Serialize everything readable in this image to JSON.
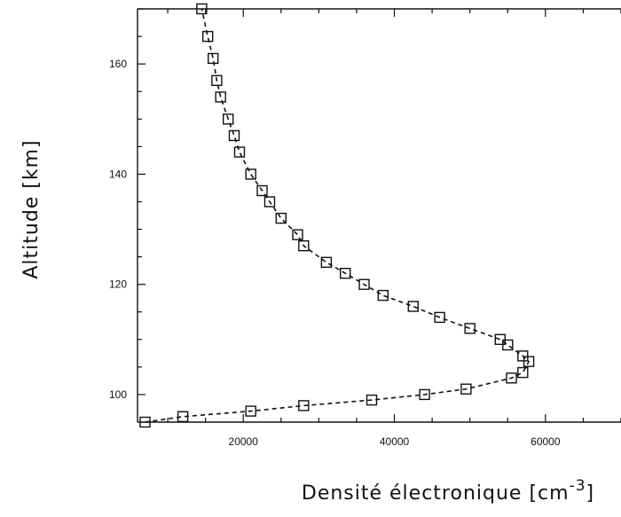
{
  "chart_data": {
    "type": "line",
    "title": "",
    "xlabel": "Densité électronique [cm",
    "xlabel_sup": "-3",
    "xlabel_close": "]",
    "ylabel": "Altitude [km]",
    "xlim": [
      6000,
      70000
    ],
    "ylim": [
      95,
      170
    ],
    "x_ticks": [
      20000,
      40000,
      60000
    ],
    "x_tick_labels": [
      "20000",
      "40000",
      "60000"
    ],
    "y_ticks": [
      100,
      120,
      140,
      160
    ],
    "y_tick_labels": [
      "100",
      "120",
      "140",
      "160"
    ],
    "grid": false,
    "legend": "none",
    "colors": {
      "line": "#111111",
      "axes": "#111111",
      "background": "#ffffff"
    },
    "series": [
      {
        "marker": "square",
        "points": [
          {
            "x": 7000,
            "y": 95
          },
          {
            "x": 12000,
            "y": 96
          },
          {
            "x": 21000,
            "y": 97
          },
          {
            "x": 28000,
            "y": 98
          },
          {
            "x": 37000,
            "y": 99
          },
          {
            "x": 44000,
            "y": 100
          },
          {
            "x": 49500,
            "y": 101
          },
          {
            "x": 55500,
            "y": 103
          },
          {
            "x": 57000,
            "y": 104
          },
          {
            "x": 57800,
            "y": 106
          },
          {
            "x": 57000,
            "y": 107
          },
          {
            "x": 55000,
            "y": 109
          },
          {
            "x": 54000,
            "y": 110
          },
          {
            "x": 50000,
            "y": 112
          },
          {
            "x": 46000,
            "y": 114
          },
          {
            "x": 42500,
            "y": 116
          },
          {
            "x": 38500,
            "y": 118
          },
          {
            "x": 36000,
            "y": 120
          },
          {
            "x": 33500,
            "y": 122
          },
          {
            "x": 31000,
            "y": 124
          },
          {
            "x": 28000,
            "y": 127
          },
          {
            "x": 27200,
            "y": 129
          },
          {
            "x": 25000,
            "y": 132
          },
          {
            "x": 23500,
            "y": 135
          },
          {
            "x": 22500,
            "y": 137
          },
          {
            "x": 21000,
            "y": 140
          },
          {
            "x": 19500,
            "y": 144
          },
          {
            "x": 18800,
            "y": 147
          },
          {
            "x": 18000,
            "y": 150
          },
          {
            "x": 17000,
            "y": 154
          },
          {
            "x": 16500,
            "y": 157
          },
          {
            "x": 16000,
            "y": 161
          },
          {
            "x": 15300,
            "y": 165
          },
          {
            "x": 14500,
            "y": 170
          }
        ]
      }
    ]
  }
}
